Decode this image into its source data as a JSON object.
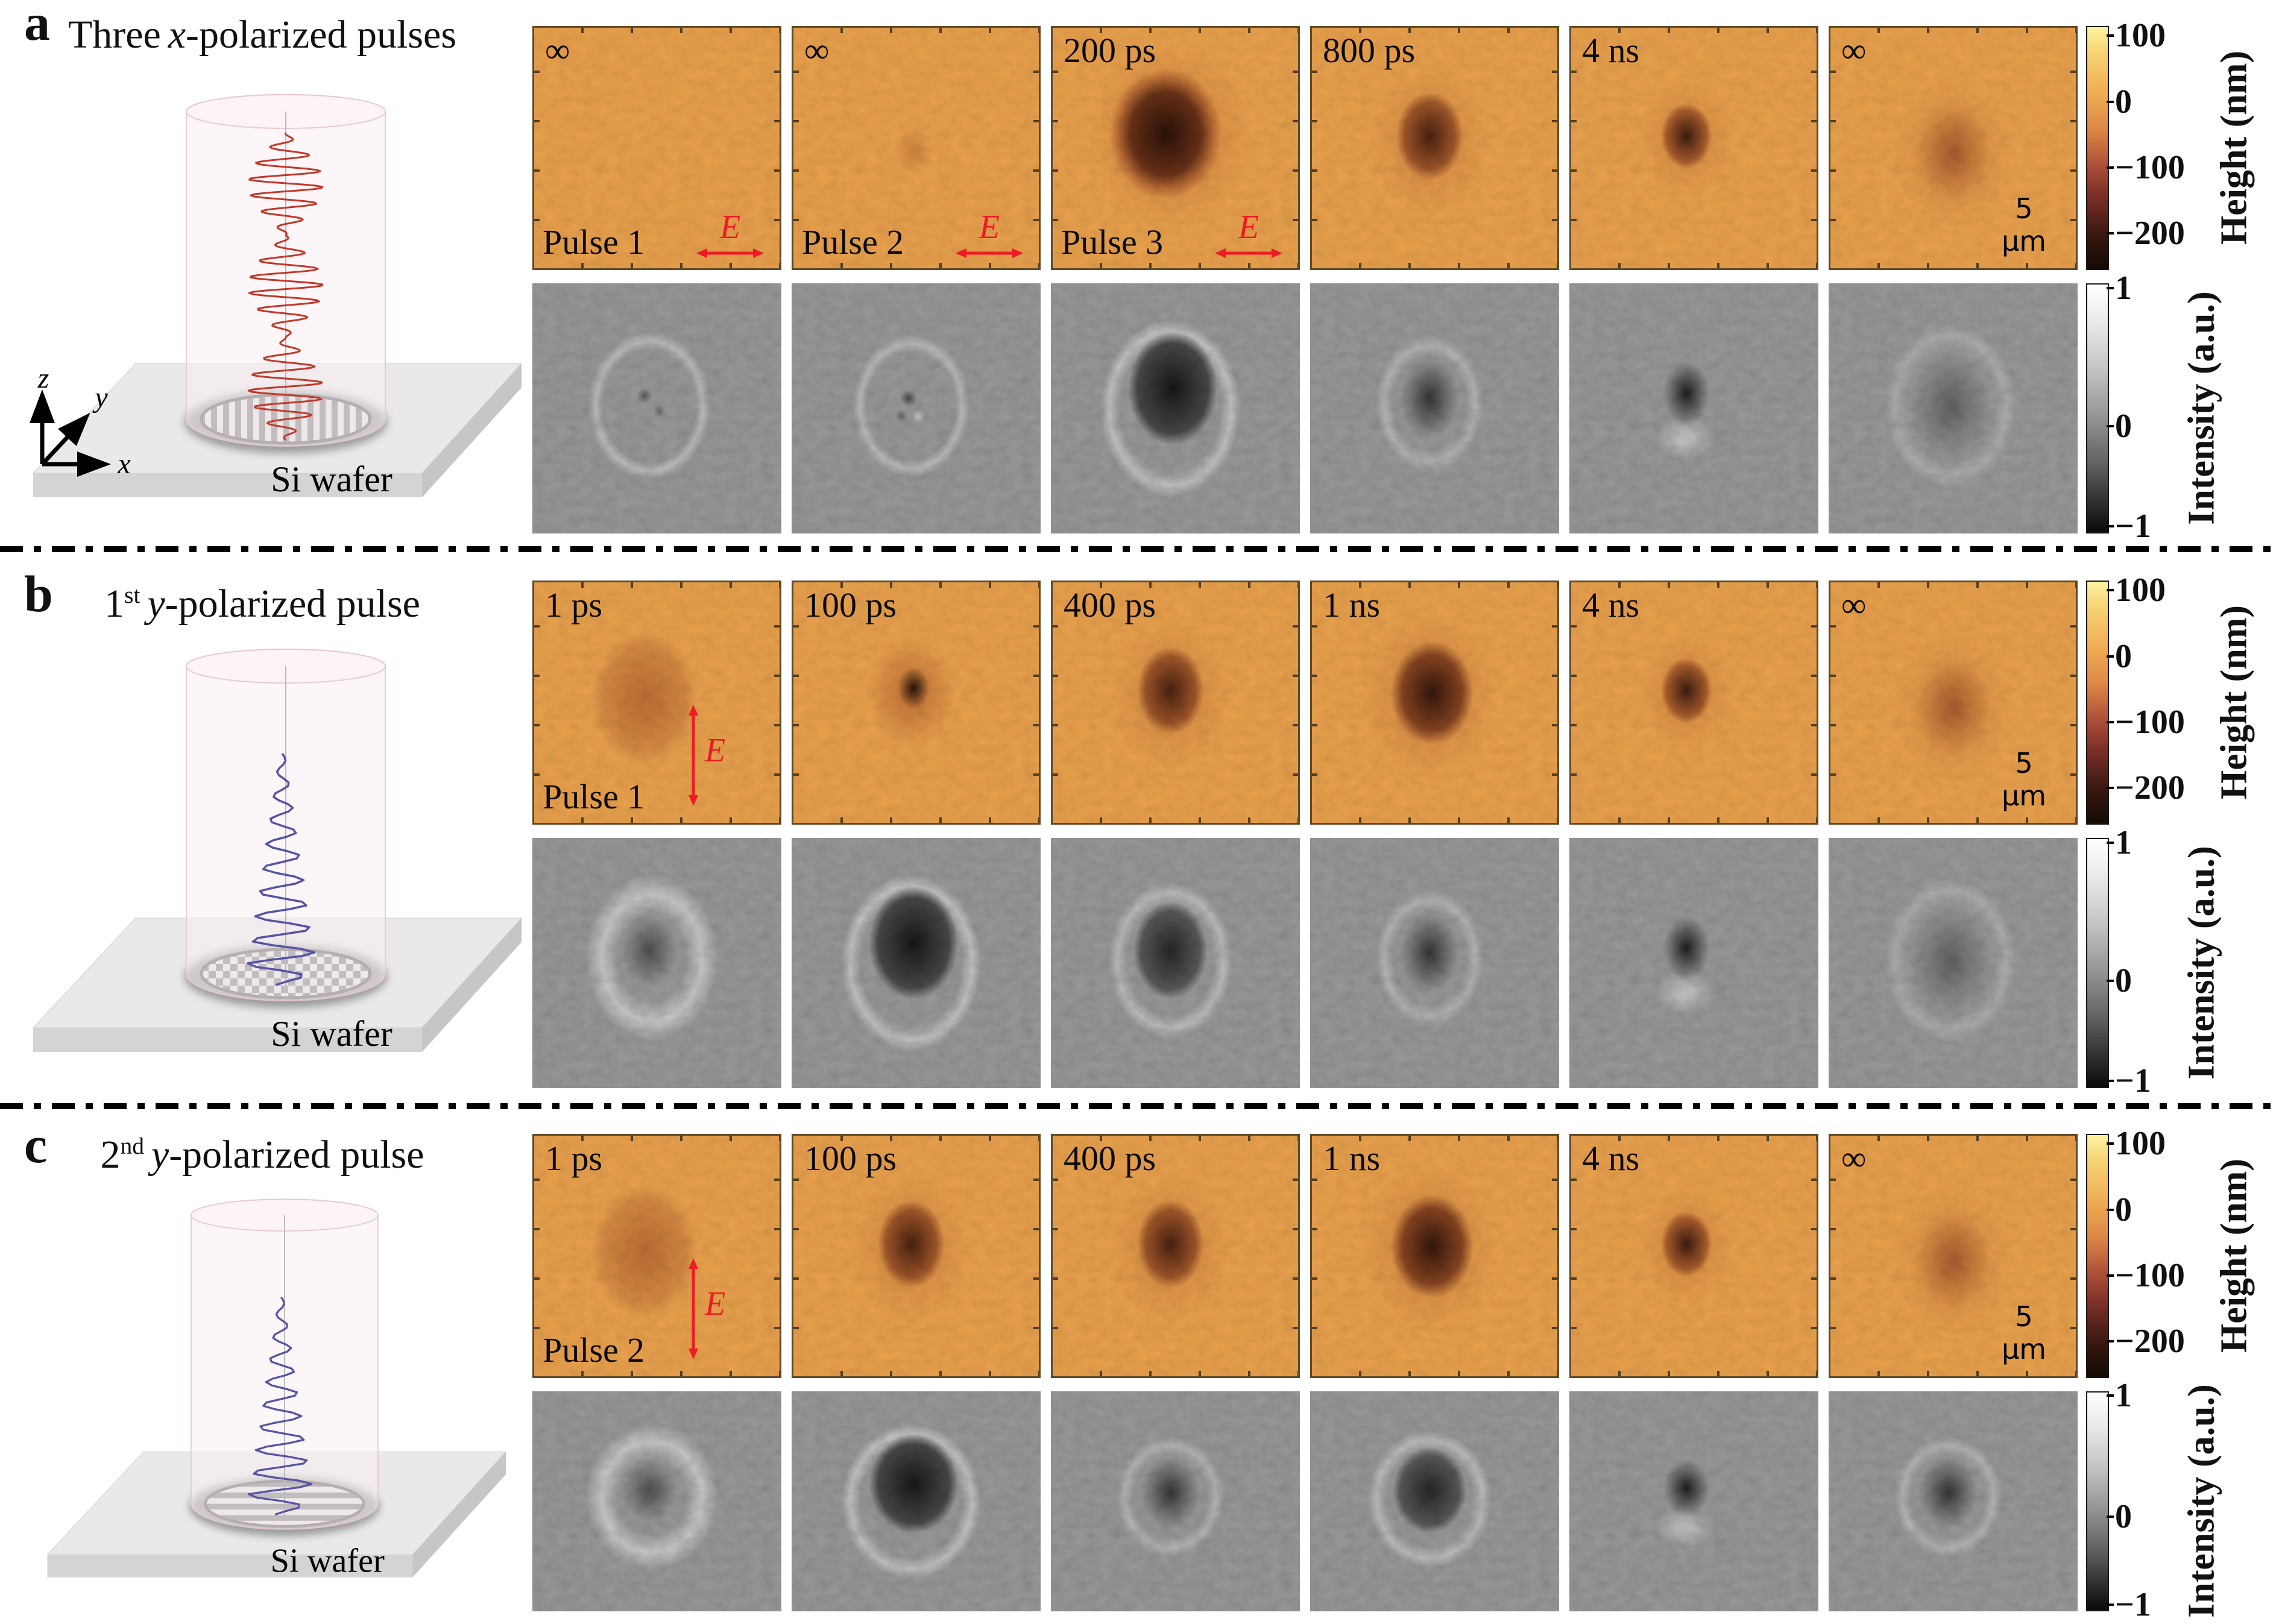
{
  "e_label": "E",
  "scalebar_label": "5 μm",
  "colorbar_height": {
    "label": "Height (nm)",
    "ticks": [
      "100",
      "0",
      "−100",
      "−200"
    ]
  },
  "colorbar_intensity": {
    "label": "Intensity (a.u.)",
    "ticks": [
      "1",
      "0",
      "−1"
    ]
  },
  "colors": {
    "e_arrow": "#ed1c24",
    "pulse_wave_a": "#c0392b",
    "pulse_wave_bc": "#5653a6",
    "height_map_bg": "#eba24d",
    "intensity_bg": "#9b9b9b"
  },
  "panels": [
    {
      "letter": "a",
      "title": {
        "pre": "Three",
        "sup": "",
        "it": "x",
        "post": "-polarized pulses"
      },
      "wafer_label": "Si wafer",
      "axes": {
        "x": "x",
        "y": "y",
        "z": "z"
      },
      "columns": [
        {
          "time": "∞",
          "pulse": "Pulse 1"
        },
        {
          "time": "∞",
          "pulse": "Pulse 2"
        },
        {
          "time": "200 ps",
          "pulse": "Pulse 3"
        },
        {
          "time": "800 ps"
        },
        {
          "time": "4 ns"
        },
        {
          "time": "∞"
        }
      ]
    },
    {
      "letter": "b",
      "title": {
        "pre": "1",
        "sup": "st",
        "it": "y",
        "post": "-polarized pulse"
      },
      "wafer_label": "Si wafer",
      "columns": [
        {
          "time": "1 ps",
          "pulse": "Pulse 1"
        },
        {
          "time": "100 ps"
        },
        {
          "time": "400 ps"
        },
        {
          "time": "1 ns"
        },
        {
          "time": "4 ns"
        },
        {
          "time": "∞"
        }
      ]
    },
    {
      "letter": "c",
      "title": {
        "pre": "2",
        "sup": "nd",
        "it": "y",
        "post": "-polarized pulse"
      },
      "wafer_label": "Si wafer",
      "columns": [
        {
          "time": "1 ps",
          "pulse": "Pulse 2"
        },
        {
          "time": "100 ps"
        },
        {
          "time": "400 ps"
        },
        {
          "time": "1 ns"
        },
        {
          "time": "4 ns"
        },
        {
          "time": "∞"
        }
      ]
    }
  ]
}
